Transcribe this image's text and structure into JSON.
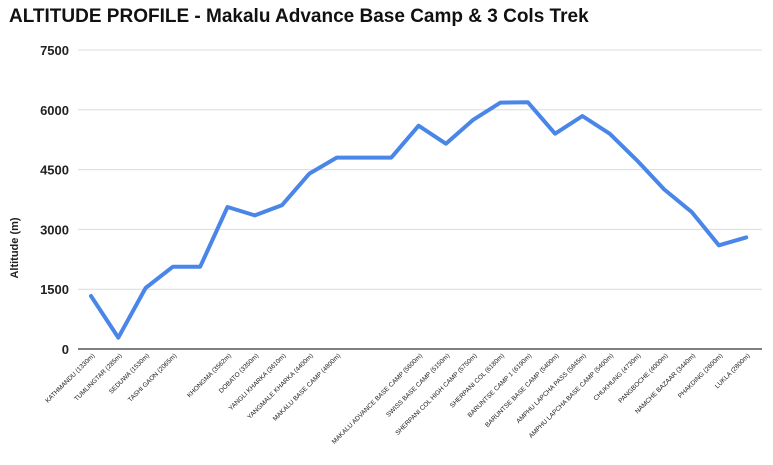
{
  "chart_data": {
    "type": "line",
    "title": "ALTITUDE PROFILE - Makalu Advance Base Camp & 3 Cols Trek",
    "xlabel": "",
    "ylabel": "Altitude (m)",
    "ylim": [
      0,
      7500
    ],
    "yticks": [
      "0",
      "1500",
      "3000",
      "4500",
      "6000",
      "7500"
    ],
    "grid": true,
    "legend": "none",
    "line_color": "#4a86e8",
    "categories": [
      "KATHMANDU (1330m)",
      "TUMLINGTAR (285m)",
      "SEDUWA (1530m)",
      "TASHI GAON (2065m)",
      "",
      "KHONGMA (3562m)",
      "DOBATO (3350m)",
      "YANGLI KHARKA (3610m)",
      "YANGMALE KHARKA (4400m)",
      "MAKALU BASE CAMP (4800m)",
      "",
      "",
      "MAKALU ADVANCE BASE CAMP (5600m)",
      "SWISS BASE CAMP (5150m)",
      "SHERPANI COL HIGH CAMP (5750m)",
      "SHERPANI COL (6180m)",
      "BARUNTSE CAMP 1 (6190m)",
      "BARUNTSE BASE CAMP (5400m)",
      "AMPHU LAPCHA PASS (5845m)",
      "AMPHU LAPCHA BASE CAMP (5400m)",
      "CHUKHUNG (4730m)",
      "PANGBOCHE (4000m)",
      "NAMCHE BAZAAR (3440m)",
      "PHAKDING (2600m)",
      "LUKLA (2800m)"
    ],
    "series": [
      {
        "values": [
          1330,
          285,
          1530,
          2065,
          2065,
          3562,
          3350,
          3610,
          4400,
          4800,
          4800,
          4800,
          5600,
          5150,
          5750,
          6180,
          6190,
          5400,
          5845,
          5400,
          4730,
          4000,
          3440,
          2600,
          2800
        ]
      }
    ]
  }
}
